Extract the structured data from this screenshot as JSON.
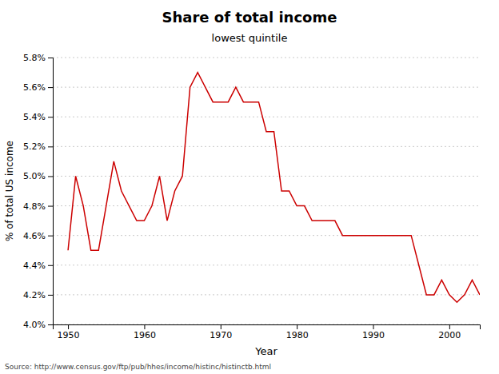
{
  "chart_data": {
    "type": "line",
    "title": "Share of total income",
    "subtitle": "lowest quintile",
    "xlabel": "Year",
    "ylabel": "% of total US income",
    "source": "Source: http://www.census.gov/ftp/pub/hhes/income/histinc/histinctb.html",
    "color": "#cc0000",
    "grid": true,
    "xlim": [
      1948,
      2004
    ],
    "ylim": [
      0.04,
      0.058
    ],
    "xticks": [
      1950,
      1960,
      1970,
      1980,
      1990,
      2000
    ],
    "yticks": [
      {
        "value": 0.04,
        "label": "4.0%"
      },
      {
        "value": 0.042,
        "label": "4.2%"
      },
      {
        "value": 0.044,
        "label": "4.4%"
      },
      {
        "value": 0.046,
        "label": "4.6%"
      },
      {
        "value": 0.048,
        "label": "4.8%"
      },
      {
        "value": 0.05,
        "label": "5.0%"
      },
      {
        "value": 0.052,
        "label": "5.2%"
      },
      {
        "value": 0.054,
        "label": "5.4%"
      },
      {
        "value": 0.056,
        "label": "5.6%"
      },
      {
        "value": 0.058,
        "label": "5.8%"
      }
    ],
    "x": [
      1950,
      1951,
      1952,
      1953,
      1954,
      1955,
      1956,
      1957,
      1958,
      1959,
      1960,
      1961,
      1962,
      1963,
      1964,
      1965,
      1966,
      1967,
      1968,
      1969,
      1970,
      1971,
      1972,
      1973,
      1974,
      1975,
      1976,
      1977,
      1978,
      1979,
      1980,
      1981,
      1982,
      1983,
      1984,
      1985,
      1986,
      1987,
      1988,
      1989,
      1990,
      1991,
      1992,
      1993,
      1994,
      1995,
      1996,
      1997,
      1998,
      1999,
      2000,
      2001,
      2002,
      2003,
      2004
    ],
    "values": [
      0.045,
      0.05,
      0.048,
      0.045,
      0.045,
      0.048,
      0.051,
      0.049,
      0.048,
      0.047,
      0.047,
      0.048,
      0.05,
      0.047,
      0.049,
      0.05,
      0.056,
      0.057,
      0.056,
      0.055,
      0.055,
      0.055,
      0.056,
      0.055,
      0.055,
      0.055,
      0.053,
      0.053,
      0.049,
      0.049,
      0.048,
      0.048,
      0.047,
      0.047,
      0.047,
      0.047,
      0.046,
      0.046,
      0.046,
      0.046,
      0.046,
      0.046,
      0.046,
      0.046,
      0.046,
      0.046,
      0.044,
      0.042,
      0.042,
      0.043,
      0.042,
      0.0415,
      0.042,
      0.043,
      0.042
    ]
  }
}
